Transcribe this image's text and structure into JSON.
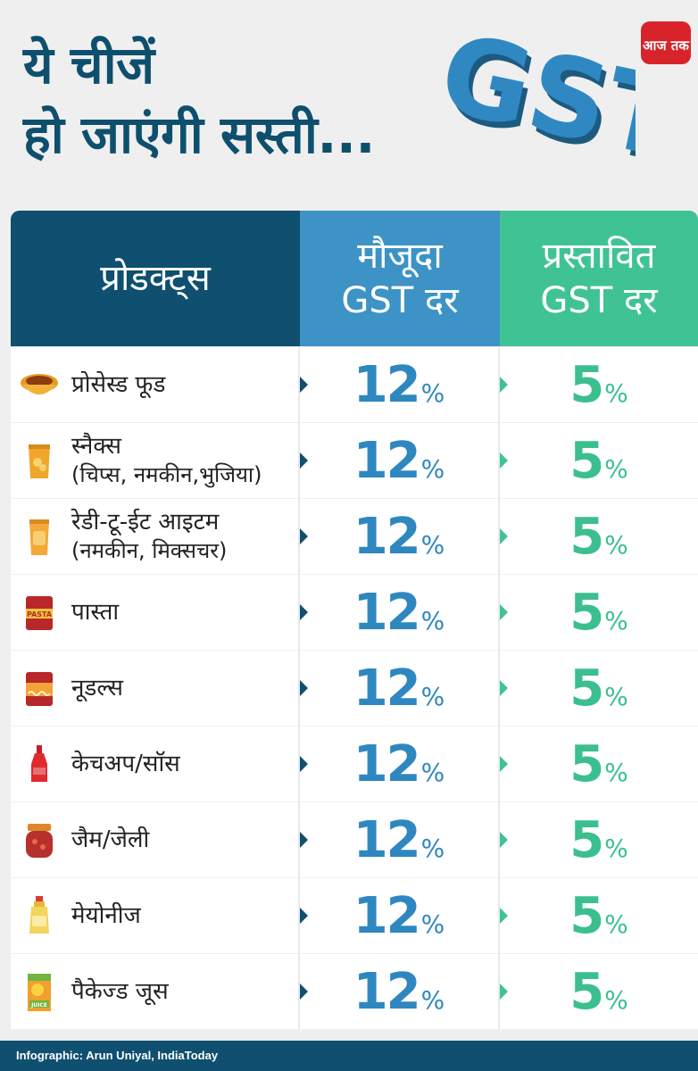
{
  "title": {
    "line1": "ये चीजें",
    "line2": "हो जाएंगी सस्ती..."
  },
  "gst_art_text": "GST",
  "logo_text": "आज तक",
  "table": {
    "headers": {
      "product": "प्रोडक्ट्स",
      "current_line1": "मौजूदा",
      "current_line2": "GST दर",
      "proposed_line1": "प्रस्तावित",
      "proposed_line2": "GST दर"
    },
    "rows": [
      {
        "icon": "bowl-icon",
        "name": "प्रोसेस्ड फूड",
        "sub": "",
        "current": "12",
        "proposed": "5"
      },
      {
        "icon": "chips-packet-icon",
        "name": "स्नैक्स",
        "sub": "(चिप्स, नमकीन,भुजिया)",
        "current": "12",
        "proposed": "5"
      },
      {
        "icon": "snack-packet-icon",
        "name": "रेडी-टू-ईट आइटम",
        "sub": "(नमकीन, मिक्सचर)",
        "current": "12",
        "proposed": "5"
      },
      {
        "icon": "pasta-packet-icon",
        "name": "पास्ता",
        "sub": "",
        "current": "12",
        "proposed": "5"
      },
      {
        "icon": "noodles-packet-icon",
        "name": "नूडल्स",
        "sub": "",
        "current": "12",
        "proposed": "5"
      },
      {
        "icon": "ketchup-bottle-icon",
        "name": "केचअप/सॉस",
        "sub": "",
        "current": "12",
        "proposed": "5"
      },
      {
        "icon": "jam-jar-icon",
        "name": "जैम/जेली",
        "sub": "",
        "current": "12",
        "proposed": "5"
      },
      {
        "icon": "mayonnaise-bottle-icon",
        "name": "मेयोनीज",
        "sub": "",
        "current": "12",
        "proposed": "5"
      },
      {
        "icon": "juice-box-icon",
        "name": "पैकेज्ड जूस",
        "sub": "",
        "current": "12",
        "proposed": "5"
      }
    ],
    "percent_sign": "%"
  },
  "colors": {
    "navy": "#0f4f6f",
    "blue": "#3d93c6",
    "green": "#40c394",
    "title": "#0e4f6e"
  },
  "footer": "Infographic: Arun Uniyal, IndiaToday"
}
